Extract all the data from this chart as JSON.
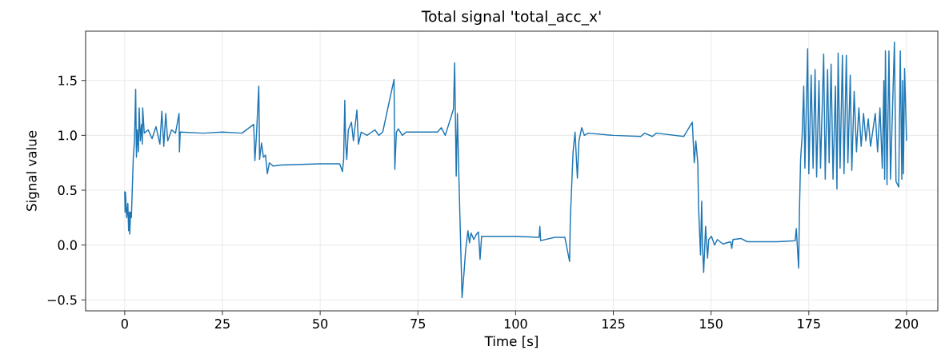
{
  "chart_data": {
    "type": "line",
    "title": "Total signal 'total_acc_x'",
    "xlabel": "Time [s]",
    "ylabel": "Signal value",
    "xlim": [
      -10,
      208
    ],
    "ylim": [
      -0.6,
      1.95
    ],
    "xticks": [
      0,
      25,
      50,
      75,
      100,
      125,
      150,
      175,
      200
    ],
    "yticks": [
      {
        "value": -0.5,
        "label": "−0.5"
      },
      {
        "value": 0,
        "label": "0.0"
      },
      {
        "value": 0.5,
        "label": "0.5"
      },
      {
        "value": 1,
        "label": "1.0"
      },
      {
        "value": 1.5,
        "label": "1.5"
      }
    ],
    "grid": true,
    "marker": "none",
    "line_style": "solid",
    "series": [
      {
        "color": "#1f77b4",
        "x": [
          0,
          0.1,
          0.2,
          0.5,
          0.8,
          1.0,
          1.2,
          1.3,
          1.5,
          1.7,
          2.0,
          2.2,
          2.5,
          2.8,
          3.0,
          3.2,
          3.5,
          3.7,
          4.0,
          4.3,
          4.5,
          4.6,
          5,
          6,
          7,
          8,
          9,
          9.5,
          10,
          10.5,
          11,
          12,
          13,
          13.9,
          14,
          14.2,
          20,
          25,
          30,
          33,
          33.3,
          33.7,
          34.3,
          34.5,
          35,
          35.5,
          36,
          36.5,
          37,
          38,
          40,
          50,
          55,
          55.7,
          56,
          56.3,
          56.5,
          56.8,
          57.2,
          58,
          58.5,
          59.4,
          59.8,
          60.5,
          62,
          64,
          65,
          66,
          68.9,
          69.1,
          69.5,
          70,
          71,
          72,
          80,
          81,
          82,
          84.1,
          84.4,
          84.8,
          85.1,
          85.5,
          86.3,
          86.8,
          87.2,
          87.8,
          88.2,
          88.6,
          89.3,
          90,
          90.5,
          90.9,
          91.3,
          95,
          100,
          106,
          106.2,
          106.4,
          110,
          112.6,
          113.8,
          114.0,
          114.3,
          114.7,
          115.2,
          115.8,
          116.2,
          116.9,
          117.6,
          118.6,
          125,
          132,
          133,
          135,
          136,
          143,
          145.2,
          145.7,
          146.1,
          146.6,
          146.8,
          147.0,
          147.3,
          147.6,
          147.8,
          148.1,
          148.6,
          149.1,
          149.4,
          150.1,
          150.9,
          151.6,
          153,
          155,
          155.3,
          155.6,
          157.6,
          159.3,
          160.3,
          167,
          171.5,
          171.8,
          172.4,
          172.6,
          172.9,
          173.3,
          173.7,
          174.0,
          174.7,
          175.0,
          175.6,
          176.1,
          176.6,
          177.0,
          177.6,
          178.0,
          178.8,
          179.2,
          179.8,
          180.2,
          180.7,
          181.2,
          181.8,
          182.2,
          182.5,
          183.0,
          183.6,
          184.0,
          184.6,
          185.0,
          185.6,
          186.0,
          186.6,
          187.2,
          187.8,
          188.4,
          189.0,
          189.6,
          190.2,
          190.8,
          191.4,
          192.0,
          192.6,
          193.2,
          193.8,
          194.2,
          194.4,
          194.6,
          195.0,
          195.5,
          195.9,
          196.9,
          197.3,
          198.0,
          198.4,
          198.8,
          199.0,
          199.2,
          199.5,
          200
        ],
        "values": [
          0.49,
          0.3,
          0.48,
          0.25,
          0.38,
          0.13,
          0.3,
          0.1,
          0.3,
          0.25,
          0.58,
          0.8,
          0.95,
          1.42,
          0.8,
          1.05,
          0.85,
          1.25,
          0.95,
          1.1,
          0.92,
          1.25,
          1.02,
          1.05,
          0.97,
          1.08,
          0.92,
          1.22,
          0.9,
          1.2,
          0.95,
          1.05,
          1.02,
          1.2,
          0.85,
          1.03,
          1.02,
          1.03,
          1.02,
          1.1,
          0.77,
          1.0,
          1.45,
          0.78,
          0.93,
          0.8,
          0.82,
          0.65,
          0.75,
          0.72,
          0.73,
          0.74,
          0.74,
          0.67,
          0.78,
          1.32,
          0.95,
          0.78,
          1.05,
          1.12,
          0.95,
          1.23,
          0.92,
          1.03,
          1.0,
          1.05,
          1.0,
          1.03,
          1.51,
          0.69,
          1.03,
          1.06,
          1.0,
          1.03,
          1.03,
          1.07,
          1.0,
          1.24,
          1.66,
          0.63,
          1.2,
          0.6,
          -0.48,
          -0.25,
          -0.05,
          0.13,
          0.02,
          0.11,
          0.05,
          0.1,
          0.12,
          -0.13,
          0.08,
          0.08,
          0.08,
          0.07,
          0.17,
          0.04,
          0.07,
          0.07,
          -0.15,
          0.25,
          0.5,
          0.85,
          1.03,
          0.61,
          0.95,
          1.07,
          1.0,
          1.02,
          1.0,
          0.99,
          1.02,
          0.99,
          1.02,
          0.99,
          1.12,
          0.75,
          0.95,
          0.75,
          0.34,
          0.17,
          -0.09,
          0.4,
          0.0,
          -0.25,
          0.17,
          -0.12,
          0.05,
          0.08,
          0.0,
          0.05,
          0.01,
          0.03,
          -0.03,
          0.05,
          0.06,
          0.03,
          0.03,
          0.03,
          0.04,
          0.15,
          -0.21,
          0.3,
          0.78,
          1.0,
          1.45,
          0.7,
          1.79,
          0.65,
          1.55,
          0.7,
          1.6,
          0.62,
          1.5,
          0.7,
          1.74,
          0.6,
          1.6,
          0.75,
          1.65,
          0.6,
          1.45,
          0.51,
          1.75,
          0.7,
          1.73,
          0.65,
          1.73,
          0.75,
          1.55,
          0.68,
          1.4,
          0.85,
          1.25,
          0.9,
          1.2,
          0.95,
          1.15,
          0.9,
          1.05,
          1.2,
          0.85,
          1.25,
          0.7,
          1.5,
          0.6,
          1.77,
          0.55,
          1.77,
          0.6,
          1.85,
          0.58,
          0.53,
          1.77,
          0.6,
          1.5,
          0.65,
          1.61,
          0.95
        ]
      }
    ]
  }
}
